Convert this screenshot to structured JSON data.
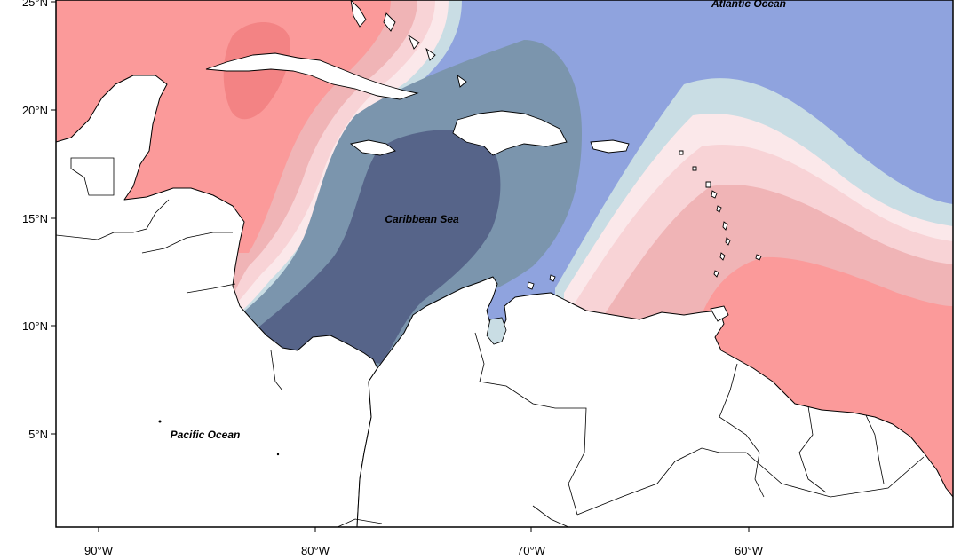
{
  "map": {
    "labels": {
      "caribbean": "Caribbean Sea",
      "atlantic": "Atlantic Ocean",
      "pacific": "Pacific Ocean"
    },
    "lat_ticks": [
      "25°N",
      "20°N",
      "15°N",
      "10°N",
      "5°N"
    ],
    "lon_ticks": [
      "90°W",
      "80°W",
      "70°W",
      "60°W"
    ],
    "extent": {
      "lon_min": -92.2,
      "lon_max": -51.2,
      "lat_min": 0.2,
      "lat_max": 25.0
    },
    "colors": {
      "blue_darkest": "#566489",
      "blue_dark": "#7b95ad",
      "blue_mid": "#8fa3de",
      "blue_light": "#c9dde4",
      "neutral": "#fbe8ea",
      "pink_light": "#f8d3d6",
      "pink_mid": "#f0b4b6",
      "red": "#fb9a9a",
      "red_dark": "#f38384"
    }
  }
}
